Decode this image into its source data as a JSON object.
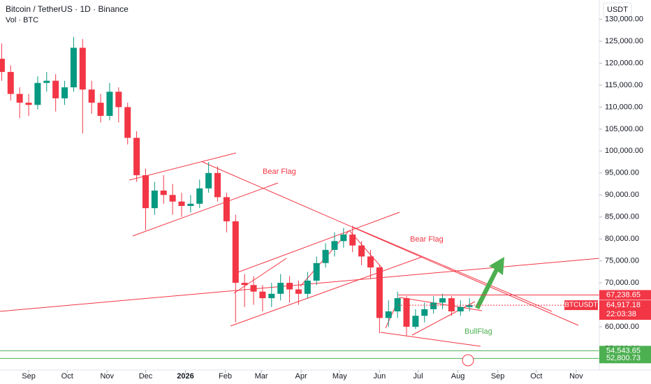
{
  "header": {
    "title": "Bitcoin / TetherUS · 1D · Binance",
    "volume_label": "Vol · BTC",
    "currency": "USDT"
  },
  "chart_data": {
    "type": "candlestick",
    "x": [
      -21,
      -14,
      -7,
      0,
      7,
      14,
      21,
      28,
      35,
      42,
      49,
      56,
      63,
      70,
      77,
      84,
      91,
      98,
      105,
      112,
      119,
      126,
      133,
      140,
      147,
      154,
      161,
      168,
      175,
      182,
      189,
      196,
      203,
      210,
      217,
      224,
      231,
      238,
      245,
      252,
      259,
      266,
      273,
      280,
      287,
      294,
      301,
      308,
      315,
      322,
      329,
      336,
      343
    ],
    "open": [
      121000,
      118000,
      113000,
      111000,
      110500,
      115500,
      116000,
      112000,
      114500,
      123500,
      114000,
      111000,
      108000,
      113500,
      110000,
      103000,
      94500,
      87000,
      91000,
      90000,
      88500,
      87500,
      88000,
      91500,
      95000,
      89500,
      84000,
      70000,
      69500,
      68000,
      66500,
      67500,
      70000,
      68500,
      67500,
      70500,
      74500,
      77500,
      79500,
      81000,
      78500,
      76000,
      73500,
      62000,
      63500,
      66500,
      60000,
      62500,
      64000,
      65500,
      66500,
      63500,
      64500
    ],
    "high": [
      124500,
      119500,
      114500,
      113000,
      117000,
      118000,
      117500,
      116000,
      126000,
      125500,
      116000,
      113000,
      115500,
      114500,
      111000,
      104500,
      96000,
      93000,
      94500,
      92500,
      90500,
      90000,
      93500,
      97500,
      96500,
      90500,
      85500,
      72000,
      71500,
      69500,
      70000,
      72000,
      71500,
      70500,
      72500,
      76000,
      79000,
      81500,
      82500,
      83000,
      79500,
      77500,
      74000,
      66000,
      68000,
      67000,
      64000,
      65500,
      67000,
      67500,
      67000,
      66000,
      66500
    ],
    "low": [
      116000,
      111500,
      107500,
      108000,
      109500,
      113500,
      109000,
      110500,
      113500,
      104000,
      108500,
      106500,
      107000,
      106500,
      101500,
      93000,
      82000,
      85500,
      88000,
      85500,
      85000,
      86000,
      87000,
      90500,
      88500,
      81500,
      61000,
      64500,
      65000,
      63500,
      64500,
      66000,
      65500,
      65000,
      66500,
      69500,
      73500,
      76000,
      78000,
      77000,
      74000,
      71000,
      58500,
      60000,
      62000,
      58000,
      59500,
      61000,
      63000,
      64000,
      62500,
      62500,
      63500
    ],
    "close": [
      118000,
      113000,
      111000,
      110500,
      115500,
      116000,
      112000,
      114500,
      123500,
      114000,
      111000,
      108000,
      113500,
      110000,
      103000,
      94500,
      87000,
      91000,
      90000,
      88500,
      87500,
      88000,
      91500,
      95000,
      89500,
      84000,
      70000,
      69500,
      68000,
      66500,
      67500,
      70000,
      68500,
      67500,
      70500,
      74500,
      77500,
      79500,
      81000,
      78500,
      76000,
      73500,
      62000,
      63500,
      66500,
      60000,
      62500,
      64000,
      65500,
      66500,
      63500,
      64500,
      64917.18
    ],
    "up_color": "#089981",
    "down_color": "#f23645",
    "xlim": [
      -22.3,
      444
    ],
    "xticks": [
      {
        "value": 0,
        "label": "Sep"
      },
      {
        "value": 30,
        "label": "Oct"
      },
      {
        "value": 61,
        "label": "Nov"
      },
      {
        "value": 91,
        "label": "Dec"
      },
      {
        "value": 122,
        "label": "2026"
      },
      {
        "value": 153,
        "label": "Feb"
      },
      {
        "value": 181,
        "label": "Mar"
      },
      {
        "value": 212,
        "label": "Apr"
      },
      {
        "value": 242,
        "label": "May"
      },
      {
        "value": 273,
        "label": "Jun"
      },
      {
        "value": 303,
        "label": "Jul"
      },
      {
        "value": 334,
        "label": "Aug"
      },
      {
        "value": 365,
        "label": "Sep"
      },
      {
        "value": 395,
        "label": "Oct"
      },
      {
        "value": 426,
        "label": "Nov"
      }
    ],
    "ylim": [
      50150,
      134380
    ],
    "yticks": [
      {
        "value": 55000,
        "label": "55,000.00"
      },
      {
        "value": 60000,
        "label": "60,000.00"
      },
      {
        "value": 65000,
        "label": "65,000.00"
      },
      {
        "value": 70000,
        "label": "70,000.00"
      },
      {
        "value": 75000,
        "label": "75,000.00"
      },
      {
        "value": 80000,
        "label": "80,000.00"
      },
      {
        "value": 85000,
        "label": "85,000.00"
      },
      {
        "value": 90000,
        "label": "90,000.00"
      },
      {
        "value": 95000,
        "label": "95,000.00"
      },
      {
        "value": 100000,
        "label": "100,000.00"
      },
      {
        "value": 105000,
        "label": "105,000.00"
      },
      {
        "value": 110000,
        "label": "110,000.00"
      },
      {
        "value": 115000,
        "label": "115,000.00"
      },
      {
        "value": 120000,
        "label": "120,000.00"
      },
      {
        "value": 125000,
        "label": "125,000.00"
      },
      {
        "value": 130000,
        "label": "130,000.00"
      }
    ],
    "price_tags": [
      {
        "value": 67238.65,
        "label": "67,238.65",
        "color": "#f23645"
      },
      {
        "value": 64917.18,
        "label": "64,917.18",
        "color": "#f23645",
        "symbol": "BTCUSDT",
        "countdown": "22:03:38"
      },
      {
        "value": 54543.65,
        "label": "54,543.65",
        "color": "#4caf50"
      },
      {
        "value": 52800.73,
        "label": "52,800.73",
        "color": "#4caf50"
      }
    ],
    "annotations": [
      "Bear Flag",
      "Bear Flag",
      "BullFlag"
    ]
  }
}
